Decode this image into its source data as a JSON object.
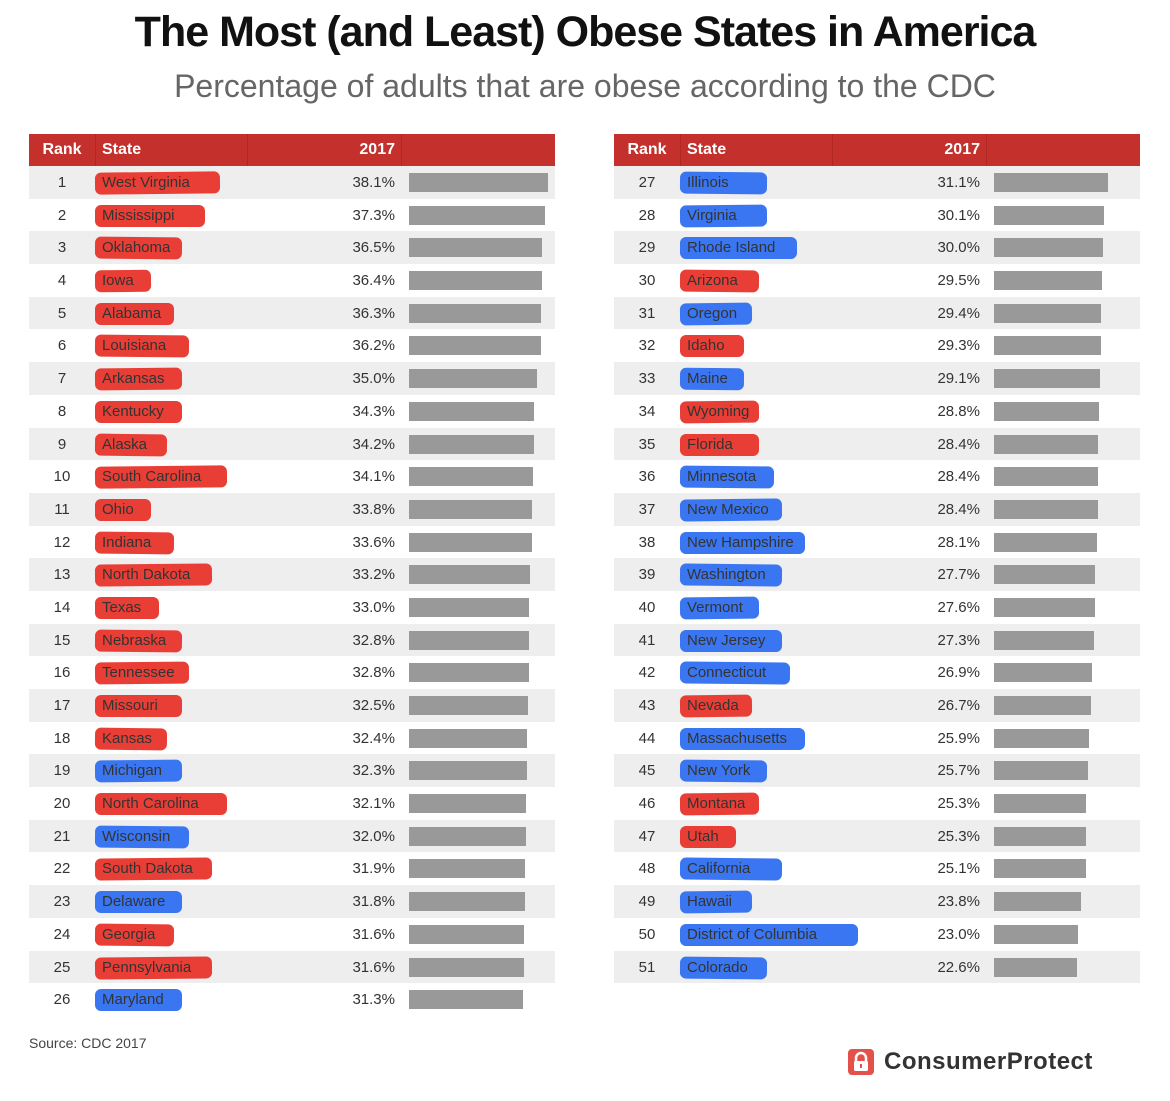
{
  "title": "The Most (and Least) Obese States in America",
  "subtitle": "Percentage of adults that are obese according to the CDC",
  "source": "Source: CDC 2017",
  "brand": "ConsumerProtect",
  "colors": {
    "header": "#c4302b",
    "bar": "#999999",
    "red_highlight": "#e8342a",
    "blue_highlight": "#2f6ff0"
  },
  "chart_data": {
    "type": "table",
    "title": "The Most (and Least) Obese States in America",
    "subtitle": "Percentage of adults that are obese according to the CDC",
    "columns": [
      "Rank",
      "State",
      "2017"
    ],
    "max_value": 38.1,
    "rows": [
      {
        "rank": "1",
        "state": "West Virginia",
        "value": 38.1,
        "label": "38.1%",
        "highlight": "red"
      },
      {
        "rank": "2",
        "state": "Mississippi",
        "value": 37.3,
        "label": "37.3%",
        "highlight": "red"
      },
      {
        "rank": "3",
        "state": "Oklahoma",
        "value": 36.5,
        "label": "36.5%",
        "highlight": "red"
      },
      {
        "rank": "4",
        "state": "Iowa",
        "value": 36.4,
        "label": "36.4%",
        "highlight": "red"
      },
      {
        "rank": "5",
        "state": "Alabama",
        "value": 36.3,
        "label": "36.3%",
        "highlight": "red"
      },
      {
        "rank": "6",
        "state": "Louisiana",
        "value": 36.2,
        "label": "36.2%",
        "highlight": "red"
      },
      {
        "rank": "7",
        "state": "Arkansas",
        "value": 35.0,
        "label": "35.0%",
        "highlight": "red"
      },
      {
        "rank": "8",
        "state": "Kentucky",
        "value": 34.3,
        "label": "34.3%",
        "highlight": "red"
      },
      {
        "rank": "9",
        "state": "Alaska",
        "value": 34.2,
        "label": "34.2%",
        "highlight": "red"
      },
      {
        "rank": "10",
        "state": "South Carolina",
        "value": 34.1,
        "label": "34.1%",
        "highlight": "red"
      },
      {
        "rank": "11",
        "state": "Ohio",
        "value": 33.8,
        "label": "33.8%",
        "highlight": "red"
      },
      {
        "rank": "12",
        "state": "Indiana",
        "value": 33.6,
        "label": "33.6%",
        "highlight": "red"
      },
      {
        "rank": "13",
        "state": "North Dakota",
        "value": 33.2,
        "label": "33.2%",
        "highlight": "red"
      },
      {
        "rank": "14",
        "state": "Texas",
        "value": 33.0,
        "label": "33.0%",
        "highlight": "red"
      },
      {
        "rank": "15",
        "state": "Nebraska",
        "value": 32.8,
        "label": "32.8%",
        "highlight": "red"
      },
      {
        "rank": "16",
        "state": "Tennessee",
        "value": 32.8,
        "label": "32.8%",
        "highlight": "red"
      },
      {
        "rank": "17",
        "state": "Missouri",
        "value": 32.5,
        "label": "32.5%",
        "highlight": "red"
      },
      {
        "rank": "18",
        "state": "Kansas",
        "value": 32.4,
        "label": "32.4%",
        "highlight": "red"
      },
      {
        "rank": "19",
        "state": "Michigan",
        "value": 32.3,
        "label": "32.3%",
        "highlight": "blue"
      },
      {
        "rank": "20",
        "state": "North Carolina",
        "value": 32.1,
        "label": "32.1%",
        "highlight": "red"
      },
      {
        "rank": "21",
        "state": "Wisconsin",
        "value": 32.0,
        "label": "32.0%",
        "highlight": "blue"
      },
      {
        "rank": "22",
        "state": "South Dakota",
        "value": 31.9,
        "label": "31.9%",
        "highlight": "red"
      },
      {
        "rank": "23",
        "state": "Delaware",
        "value": 31.8,
        "label": "31.8%",
        "highlight": "blue"
      },
      {
        "rank": "24",
        "state": "Georgia",
        "value": 31.6,
        "label": "31.6%",
        "highlight": "red"
      },
      {
        "rank": "25",
        "state": "Pennsylvania",
        "value": 31.6,
        "label": "31.6%",
        "highlight": "red"
      },
      {
        "rank": "26",
        "state": "Maryland",
        "value": 31.3,
        "label": "31.3%",
        "highlight": "blue"
      },
      {
        "rank": "27",
        "state": "Illinois",
        "value": 31.1,
        "label": "31.1%",
        "highlight": "blue"
      },
      {
        "rank": "28",
        "state": "Virginia",
        "value": 30.1,
        "label": "30.1%",
        "highlight": "blue"
      },
      {
        "rank": "29",
        "state": "Rhode Island",
        "value": 30.0,
        "label": "30.0%",
        "highlight": "blue"
      },
      {
        "rank": "30",
        "state": "Arizona",
        "value": 29.5,
        "label": "29.5%",
        "highlight": "red"
      },
      {
        "rank": "31",
        "state": "Oregon",
        "value": 29.4,
        "label": "29.4%",
        "highlight": "blue"
      },
      {
        "rank": "32",
        "state": "Idaho",
        "value": 29.3,
        "label": "29.3%",
        "highlight": "red"
      },
      {
        "rank": "33",
        "state": "Maine",
        "value": 29.1,
        "label": "29.1%",
        "highlight": "blue"
      },
      {
        "rank": "34",
        "state": "Wyoming",
        "value": 28.8,
        "label": "28.8%",
        "highlight": "red"
      },
      {
        "rank": "35",
        "state": "Florida",
        "value": 28.4,
        "label": "28.4%",
        "highlight": "red"
      },
      {
        "rank": "36",
        "state": "Minnesota",
        "value": 28.4,
        "label": "28.4%",
        "highlight": "blue"
      },
      {
        "rank": "37",
        "state": "New Mexico",
        "value": 28.4,
        "label": "28.4%",
        "highlight": "blue"
      },
      {
        "rank": "38",
        "state": "New Hampshire",
        "value": 28.1,
        "label": "28.1%",
        "highlight": "blue"
      },
      {
        "rank": "39",
        "state": "Washington",
        "value": 27.7,
        "label": "27.7%",
        "highlight": "blue"
      },
      {
        "rank": "40",
        "state": "Vermont",
        "value": 27.6,
        "label": "27.6%",
        "highlight": "blue"
      },
      {
        "rank": "41",
        "state": "New Jersey",
        "value": 27.3,
        "label": "27.3%",
        "highlight": "blue"
      },
      {
        "rank": "42",
        "state": "Connecticut",
        "value": 26.9,
        "label": "26.9%",
        "highlight": "blue"
      },
      {
        "rank": "43",
        "state": "Nevada",
        "value": 26.7,
        "label": "26.7%",
        "highlight": "red"
      },
      {
        "rank": "44",
        "state": "Massachusetts",
        "value": 25.9,
        "label": "25.9%",
        "highlight": "blue"
      },
      {
        "rank": "45",
        "state": "New York",
        "value": 25.7,
        "label": "25.7%",
        "highlight": "blue"
      },
      {
        "rank": "46",
        "state": "Montana",
        "value": 25.3,
        "label": "25.3%",
        "highlight": "red"
      },
      {
        "rank": "47",
        "state": "Utah",
        "value": 25.3,
        "label": "25.3%",
        "highlight": "red"
      },
      {
        "rank": "48",
        "state": "California",
        "value": 25.1,
        "label": "25.1%",
        "highlight": "blue"
      },
      {
        "rank": "49",
        "state": "Hawaii",
        "value": 23.8,
        "label": "23.8%",
        "highlight": "blue"
      },
      {
        "rank": "50",
        "state": "District of Columbia",
        "value": 23.0,
        "label": "23.0%",
        "highlight": "blue"
      },
      {
        "rank": "51",
        "state": "Colorado",
        "value": 22.6,
        "label": "22.6%",
        "highlight": "blue"
      }
    ]
  }
}
